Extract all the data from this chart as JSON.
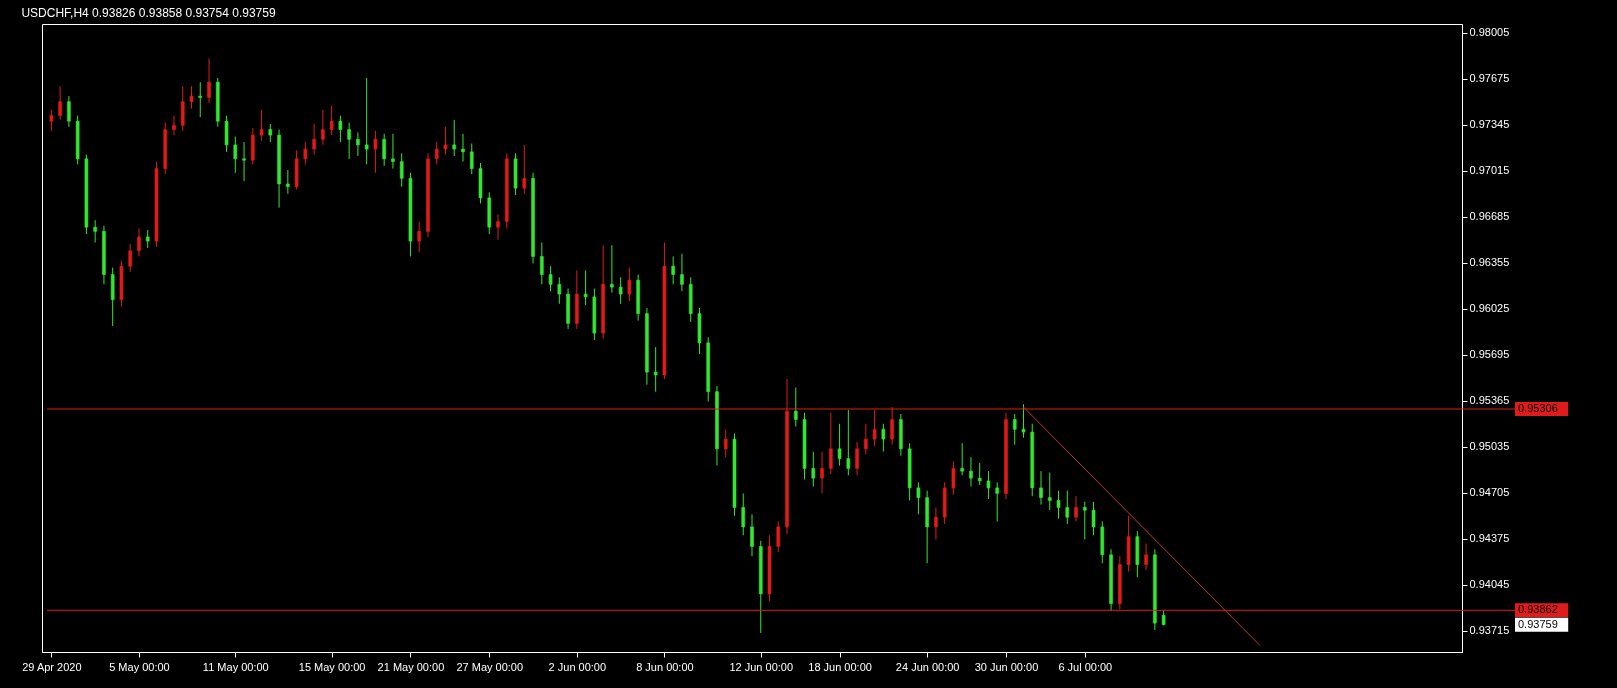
{
  "chart_data": {
    "type": "candlestick",
    "title": "USDCHF,H4  0.93826 0.93858 0.93754 0.93759",
    "categories": [
      "29 Apr 2020",
      null,
      null,
      null,
      null,
      null,
      null,
      null,
      null,
      null,
      "5 May 00:00",
      null,
      null,
      null,
      null,
      null,
      null,
      null,
      null,
      null,
      null,
      "11 May 00:00",
      null,
      null,
      null,
      null,
      null,
      null,
      null,
      null,
      null,
      null,
      "15 May 00:00",
      null,
      null,
      null,
      null,
      null,
      null,
      null,
      null,
      "21 May 00:00",
      null,
      null,
      null,
      null,
      null,
      null,
      null,
      null,
      "27 May 00:00",
      null,
      null,
      null,
      null,
      null,
      null,
      null,
      null,
      null,
      "2 Jun 00:00",
      null,
      null,
      null,
      null,
      null,
      null,
      null,
      null,
      null,
      "8 Jun 00:00",
      null,
      null,
      null,
      null,
      null,
      null,
      null,
      null,
      null,
      null,
      "12 Jun 00:00",
      null,
      null,
      null,
      null,
      null,
      null,
      null,
      null,
      "18 Jun 00:00",
      null,
      null,
      null,
      null,
      null,
      null,
      null,
      null,
      null,
      "24 Jun 00:00",
      null,
      null,
      null,
      null,
      null,
      null,
      null,
      null,
      "30 Jun 00:00",
      null,
      null,
      null,
      null,
      null,
      null,
      null,
      null,
      "6 Jul 00:00",
      null,
      null,
      null,
      null,
      null,
      null,
      null,
      null,
      null,
      null,
      null,
      null,
      null,
      null,
      null,
      null,
      null,
      null,
      null,
      null,
      null,
      null,
      null,
      null,
      null,
      null,
      null,
      null,
      null,
      null,
      null,
      null,
      null,
      null,
      null,
      null,
      null,
      null,
      null,
      null,
      null,
      null
    ],
    "ohlc": [
      [
        0.9737,
        0.9745,
        0.973,
        0.9741
      ],
      [
        0.9741,
        0.9762,
        0.9738,
        0.9751
      ],
      [
        0.9751,
        0.9755,
        0.9733,
        0.9737
      ],
      [
        0.9737,
        0.9741,
        0.9706,
        0.971
      ],
      [
        0.971,
        0.9713,
        0.9656,
        0.9661
      ],
      [
        0.9661,
        0.9666,
        0.965,
        0.9658
      ],
      [
        0.9658,
        0.9662,
        0.962,
        0.9627
      ],
      [
        0.9627,
        0.9632,
        0.959,
        0.9609
      ],
      [
        0.9609,
        0.9637,
        0.9604,
        0.9633
      ],
      [
        0.9633,
        0.9649,
        0.9629,
        0.9644
      ],
      [
        0.9644,
        0.966,
        0.964,
        0.9654
      ],
      [
        0.9654,
        0.9659,
        0.9646,
        0.9651
      ],
      [
        0.9651,
        0.9708,
        0.9647,
        0.9703
      ],
      [
        0.9703,
        0.9736,
        0.9699,
        0.9731
      ],
      [
        0.9731,
        0.9741,
        0.9727,
        0.9734
      ],
      [
        0.9734,
        0.9762,
        0.973,
        0.9751
      ],
      [
        0.9751,
        0.9762,
        0.9746,
        0.9755
      ],
      [
        0.9755,
        0.9765,
        0.974,
        0.9754
      ],
      [
        0.9754,
        0.9782,
        0.975,
        0.9765
      ],
      [
        0.9765,
        0.9768,
        0.9733,
        0.9737
      ],
      [
        0.9737,
        0.9741,
        0.9715,
        0.972
      ],
      [
        0.972,
        0.9726,
        0.97,
        0.971
      ],
      [
        0.971,
        0.9722,
        0.9694,
        0.9709
      ],
      [
        0.9709,
        0.9732,
        0.9706,
        0.9727
      ],
      [
        0.9727,
        0.9745,
        0.9723,
        0.9731
      ],
      [
        0.9731,
        0.9735,
        0.9722,
        0.9727
      ],
      [
        0.9727,
        0.9731,
        0.9675,
        0.9692
      ],
      [
        0.9692,
        0.9702,
        0.9685,
        0.969
      ],
      [
        0.969,
        0.9716,
        0.9688,
        0.971
      ],
      [
        0.971,
        0.9722,
        0.9706,
        0.9717
      ],
      [
        0.9717,
        0.9735,
        0.9713,
        0.9724
      ],
      [
        0.9724,
        0.9745,
        0.972,
        0.9731
      ],
      [
        0.9731,
        0.9748,
        0.9727,
        0.9737
      ],
      [
        0.9737,
        0.9741,
        0.9722,
        0.9731
      ],
      [
        0.9731,
        0.9736,
        0.971,
        0.9724
      ],
      [
        0.9724,
        0.9729,
        0.9712,
        0.972
      ],
      [
        0.972,
        0.9768,
        0.9706,
        0.9717
      ],
      [
        0.9717,
        0.973,
        0.97,
        0.9724
      ],
      [
        0.9724,
        0.9728,
        0.9705,
        0.971
      ],
      [
        0.971,
        0.9728,
        0.9703,
        0.9708
      ],
      [
        0.9708,
        0.9714,
        0.969,
        0.9696
      ],
      [
        0.9696,
        0.97,
        0.964,
        0.9651
      ],
      [
        0.9651,
        0.9665,
        0.9643,
        0.9658
      ],
      [
        0.9658,
        0.9714,
        0.9654,
        0.971
      ],
      [
        0.971,
        0.9722,
        0.9706,
        0.9717
      ],
      [
        0.9717,
        0.9733,
        0.9713,
        0.972
      ],
      [
        0.972,
        0.9738,
        0.9712,
        0.9717
      ],
      [
        0.9717,
        0.9728,
        0.9708,
        0.9715
      ],
      [
        0.9715,
        0.9721,
        0.9699,
        0.9703
      ],
      [
        0.9703,
        0.9707,
        0.9678,
        0.9682
      ],
      [
        0.9682,
        0.9686,
        0.9656,
        0.9661
      ],
      [
        0.9661,
        0.967,
        0.9652,
        0.9665
      ],
      [
        0.9665,
        0.9714,
        0.966,
        0.971
      ],
      [
        0.971,
        0.9714,
        0.9684,
        0.9689
      ],
      [
        0.9689,
        0.972,
        0.9685,
        0.9696
      ],
      [
        0.9696,
        0.97,
        0.9635,
        0.964
      ],
      [
        0.964,
        0.965,
        0.962,
        0.9627
      ],
      [
        0.9627,
        0.9633,
        0.9615,
        0.962
      ],
      [
        0.962,
        0.9625,
        0.9606,
        0.9613
      ],
      [
        0.9613,
        0.9617,
        0.9588,
        0.9592
      ],
      [
        0.9592,
        0.963,
        0.9588,
        0.9613
      ],
      [
        0.9613,
        0.963,
        0.9605,
        0.9611
      ],
      [
        0.9611,
        0.9617,
        0.958,
        0.9585
      ],
      [
        0.9585,
        0.9648,
        0.9581,
        0.962
      ],
      [
        0.962,
        0.9648,
        0.9614,
        0.9618
      ],
      [
        0.9618,
        0.9625,
        0.9606,
        0.9613
      ],
      [
        0.9613,
        0.9632,
        0.9608,
        0.9623
      ],
      [
        0.9623,
        0.9627,
        0.9594,
        0.9599
      ],
      [
        0.9599,
        0.9603,
        0.9548,
        0.9557
      ],
      [
        0.9557,
        0.9575,
        0.9543,
        0.9555
      ],
      [
        0.9555,
        0.965,
        0.9552,
        0.9633
      ],
      [
        0.9633,
        0.964,
        0.962,
        0.9627
      ],
      [
        0.9627,
        0.9642,
        0.9615,
        0.962
      ],
      [
        0.962,
        0.9625,
        0.9593,
        0.9599
      ],
      [
        0.9599,
        0.9603,
        0.957,
        0.9578
      ],
      [
        0.9578,
        0.9582,
        0.9536,
        0.9543
      ],
      [
        0.9543,
        0.9547,
        0.949,
        0.9502
      ],
      [
        0.9502,
        0.9516,
        0.9496,
        0.9509
      ],
      [
        0.9509,
        0.9513,
        0.9454,
        0.946
      ],
      [
        0.946,
        0.947,
        0.944,
        0.9446
      ],
      [
        0.9446,
        0.9455,
        0.9425,
        0.9432
      ],
      [
        0.9432,
        0.9436,
        0.937,
        0.9398
      ],
      [
        0.9398,
        0.944,
        0.9393,
        0.9432
      ],
      [
        0.9432,
        0.945,
        0.9428,
        0.9446
      ],
      [
        0.9446,
        0.9552,
        0.9441,
        0.9529
      ],
      [
        0.9529,
        0.9546,
        0.9518,
        0.9523
      ],
      [
        0.9523,
        0.9528,
        0.948,
        0.9488
      ],
      [
        0.9488,
        0.95,
        0.9475,
        0.9481
      ],
      [
        0.9481,
        0.95,
        0.947,
        0.9488
      ],
      [
        0.9488,
        0.9528,
        0.9484,
        0.9502
      ],
      [
        0.9502,
        0.952,
        0.949,
        0.9495
      ],
      [
        0.9495,
        0.953,
        0.9483,
        0.9488
      ],
      [
        0.9488,
        0.9507,
        0.9483,
        0.9502
      ],
      [
        0.9502,
        0.952,
        0.9498,
        0.9509
      ],
      [
        0.9509,
        0.953,
        0.9504,
        0.9516
      ],
      [
        0.9516,
        0.952,
        0.95,
        0.9509
      ],
      [
        0.9509,
        0.9532,
        0.9505,
        0.9523
      ],
      [
        0.9523,
        0.9527,
        0.9497,
        0.9502
      ],
      [
        0.9502,
        0.9506,
        0.9465,
        0.9474
      ],
      [
        0.9474,
        0.9478,
        0.9455,
        0.9467
      ],
      [
        0.9467,
        0.9472,
        0.942,
        0.9446
      ],
      [
        0.9446,
        0.946,
        0.9437,
        0.9453
      ],
      [
        0.9453,
        0.9478,
        0.9448,
        0.9474
      ],
      [
        0.9474,
        0.9493,
        0.9469,
        0.9488
      ],
      [
        0.9488,
        0.9506,
        0.9483,
        0.9486
      ],
      [
        0.9486,
        0.9496,
        0.9475,
        0.9481
      ],
      [
        0.9481,
        0.9492,
        0.9476,
        0.9479
      ],
      [
        0.9479,
        0.9486,
        0.9466,
        0.9474
      ],
      [
        0.9474,
        0.9478,
        0.945,
        0.947
      ],
      [
        0.947,
        0.9528,
        0.9466,
        0.9523
      ],
      [
        0.9523,
        0.9527,
        0.9505,
        0.9516
      ],
      [
        0.9516,
        0.9534,
        0.951,
        0.9514
      ],
      [
        0.9514,
        0.952,
        0.9468,
        0.9474
      ],
      [
        0.9474,
        0.9486,
        0.9462,
        0.9467
      ],
      [
        0.9467,
        0.9485,
        0.9458,
        0.9465
      ],
      [
        0.9465,
        0.9472,
        0.9452,
        0.946
      ],
      [
        0.946,
        0.9472,
        0.9448,
        0.9453
      ],
      [
        0.9453,
        0.9468,
        0.945,
        0.946
      ],
      [
        0.946,
        0.9464,
        0.9437,
        0.9458
      ],
      [
        0.9458,
        0.9464,
        0.944,
        0.9446
      ],
      [
        0.9446,
        0.945,
        0.942,
        0.9426
      ],
      [
        0.9426,
        0.943,
        0.9386,
        0.9391
      ],
      [
        0.9391,
        0.9425,
        0.9387,
        0.9419
      ],
      [
        0.9419,
        0.9454,
        0.9414,
        0.9439
      ],
      [
        0.9439,
        0.9443,
        0.941,
        0.9419
      ],
      [
        0.9419,
        0.9434,
        0.9415,
        0.9426
      ],
      [
        0.9426,
        0.943,
        0.9372,
        0.9377
      ],
      [
        0.93826,
        0.93858,
        0.93754,
        0.93759
      ],
      null,
      null,
      null,
      null,
      null,
      null,
      null,
      null,
      null,
      null,
      null,
      null,
      null,
      null,
      null,
      null,
      null,
      null,
      null,
      null,
      null,
      null,
      null,
      null,
      null,
      null,
      null,
      null,
      null,
      null,
      null,
      null,
      null
    ],
    "colors": [
      "#e01b1b",
      "#e01b1b",
      "#32e632",
      "#32e632",
      "#32e632",
      "#32e632",
      "#32e632",
      "#32e632",
      "#e01b1b",
      "#e01b1b",
      "#e01b1b",
      "#32e632",
      "#e01b1b",
      "#e01b1b",
      "#e01b1b",
      "#e01b1b",
      "#e01b1b",
      "#32e632",
      "#e01b1b",
      "#32e632",
      "#32e632",
      "#32e632",
      "#32e632",
      "#e01b1b",
      "#e01b1b",
      "#32e632",
      "#32e632",
      "#32e632",
      "#e01b1b",
      "#e01b1b",
      "#e01b1b",
      "#e01b1b",
      "#e01b1b",
      "#32e632",
      "#32e632",
      "#32e632",
      "#32e632",
      "#e01b1b",
      "#32e632",
      "#32e632",
      "#32e632",
      "#32e632",
      "#e01b1b",
      "#e01b1b",
      "#e01b1b",
      "#e01b1b",
      "#32e632",
      "#32e632",
      "#32e632",
      "#32e632",
      "#32e632",
      "#e01b1b",
      "#e01b1b",
      "#32e632",
      "#e01b1b",
      "#32e632",
      "#32e632",
      "#32e632",
      "#32e632",
      "#32e632",
      "#e01b1b",
      "#32e632",
      "#32e632",
      "#e01b1b",
      "#32e632",
      "#32e632",
      "#e01b1b",
      "#32e632",
      "#32e632",
      "#32e632",
      "#e01b1b",
      "#32e632",
      "#32e632",
      "#32e632",
      "#32e632",
      "#32e632",
      "#32e632",
      "#e01b1b",
      "#32e632",
      "#32e632",
      "#32e632",
      "#32e632",
      "#e01b1b",
      "#e01b1b",
      "#e01b1b",
      "#32e632",
      "#32e632",
      "#32e632",
      "#e01b1b",
      "#e01b1b",
      "#32e632",
      "#32e632",
      "#e01b1b",
      "#e01b1b",
      "#e01b1b",
      "#32e632",
      "#e01b1b",
      "#32e632",
      "#32e632",
      "#32e632",
      "#32e632",
      "#e01b1b",
      "#e01b1b",
      "#e01b1b",
      "#32e632",
      "#32e632",
      "#32e632",
      "#32e632",
      "#32e632",
      "#e01b1b",
      "#32e632",
      "#32e632",
      "#32e632",
      "#32e632",
      "#32e632",
      "#32e632",
      "#32e632",
      "#e01b1b",
      "#32e632",
      "#32e632",
      "#32e632",
      "#32e632",
      "#e01b1b",
      "#e01b1b",
      "#32e632",
      "#e01b1b",
      "#32e632",
      "#32e632",
      null,
      null,
      null,
      null,
      null,
      null,
      null,
      null,
      null,
      null,
      null,
      null,
      null,
      null,
      null,
      null,
      null,
      null,
      null,
      null,
      null,
      null,
      null,
      null,
      null,
      null,
      null,
      null,
      null,
      null,
      null,
      null,
      null
    ],
    "series": [
      {
        "type": "line",
        "color": "#c0392b",
        "values": [
          null,
          null,
          null,
          null,
          null,
          null,
          null,
          null,
          null,
          null,
          null,
          null,
          null,
          null,
          null,
          null,
          null,
          null,
          null,
          null,
          null,
          null,
          null,
          null,
          null,
          null,
          null,
          null,
          null,
          null,
          null,
          null,
          null,
          null,
          null,
          null,
          null,
          null,
          null,
          null,
          null,
          null,
          null,
          null,
          null,
          null,
          null,
          null,
          null,
          null,
          null,
          null,
          null,
          null,
          null,
          null,
          null,
          null,
          null,
          null,
          null,
          null,
          null,
          null,
          null,
          null,
          null,
          null,
          null,
          null,
          null,
          null,
          null,
          null,
          null,
          null,
          null,
          null,
          null,
          null,
          null,
          null,
          null,
          null,
          null,
          null,
          null,
          null,
          null,
          null,
          null,
          null,
          null,
          null,
          null,
          null,
          null,
          null,
          null,
          null,
          null,
          null,
          null,
          null,
          null,
          null,
          null,
          null,
          null,
          null,
          null,
          0.9532,
          null,
          null,
          null,
          null,
          null,
          null,
          null,
          null,
          null,
          null,
          null,
          null,
          null,
          null,
          null,
          null,
          null,
          null,
          null,
          null,
          null,
          null,
          null,
          null,
          null,
          null,
          0.9361,
          null,
          null,
          null,
          null,
          null,
          null,
          null,
          null,
          null,
          null,
          null,
          null,
          null,
          null,
          null,
          null,
          null,
          null,
          null,
          null,
          null,
          null
        ]
      }
    ],
    "ylim": [
      0.93563,
      0.98067
    ],
    "yticks": [
      0.98005,
      0.97675,
      0.97345,
      0.97015,
      0.96685,
      0.96355,
      0.96025,
      0.95695,
      0.95365,
      0.95035,
      0.94705,
      0.94375,
      0.94045,
      0.93715
    ],
    "ref_lines": [
      {
        "axis": "y",
        "value": 0.95306,
        "label": "0.95306",
        "color": "#e01b1b"
      },
      {
        "axis": "y",
        "value": 0.93862,
        "label": "0.93862",
        "color": "#e01b1b"
      }
    ],
    "annotations": [
      "0.93759"
    ]
  }
}
